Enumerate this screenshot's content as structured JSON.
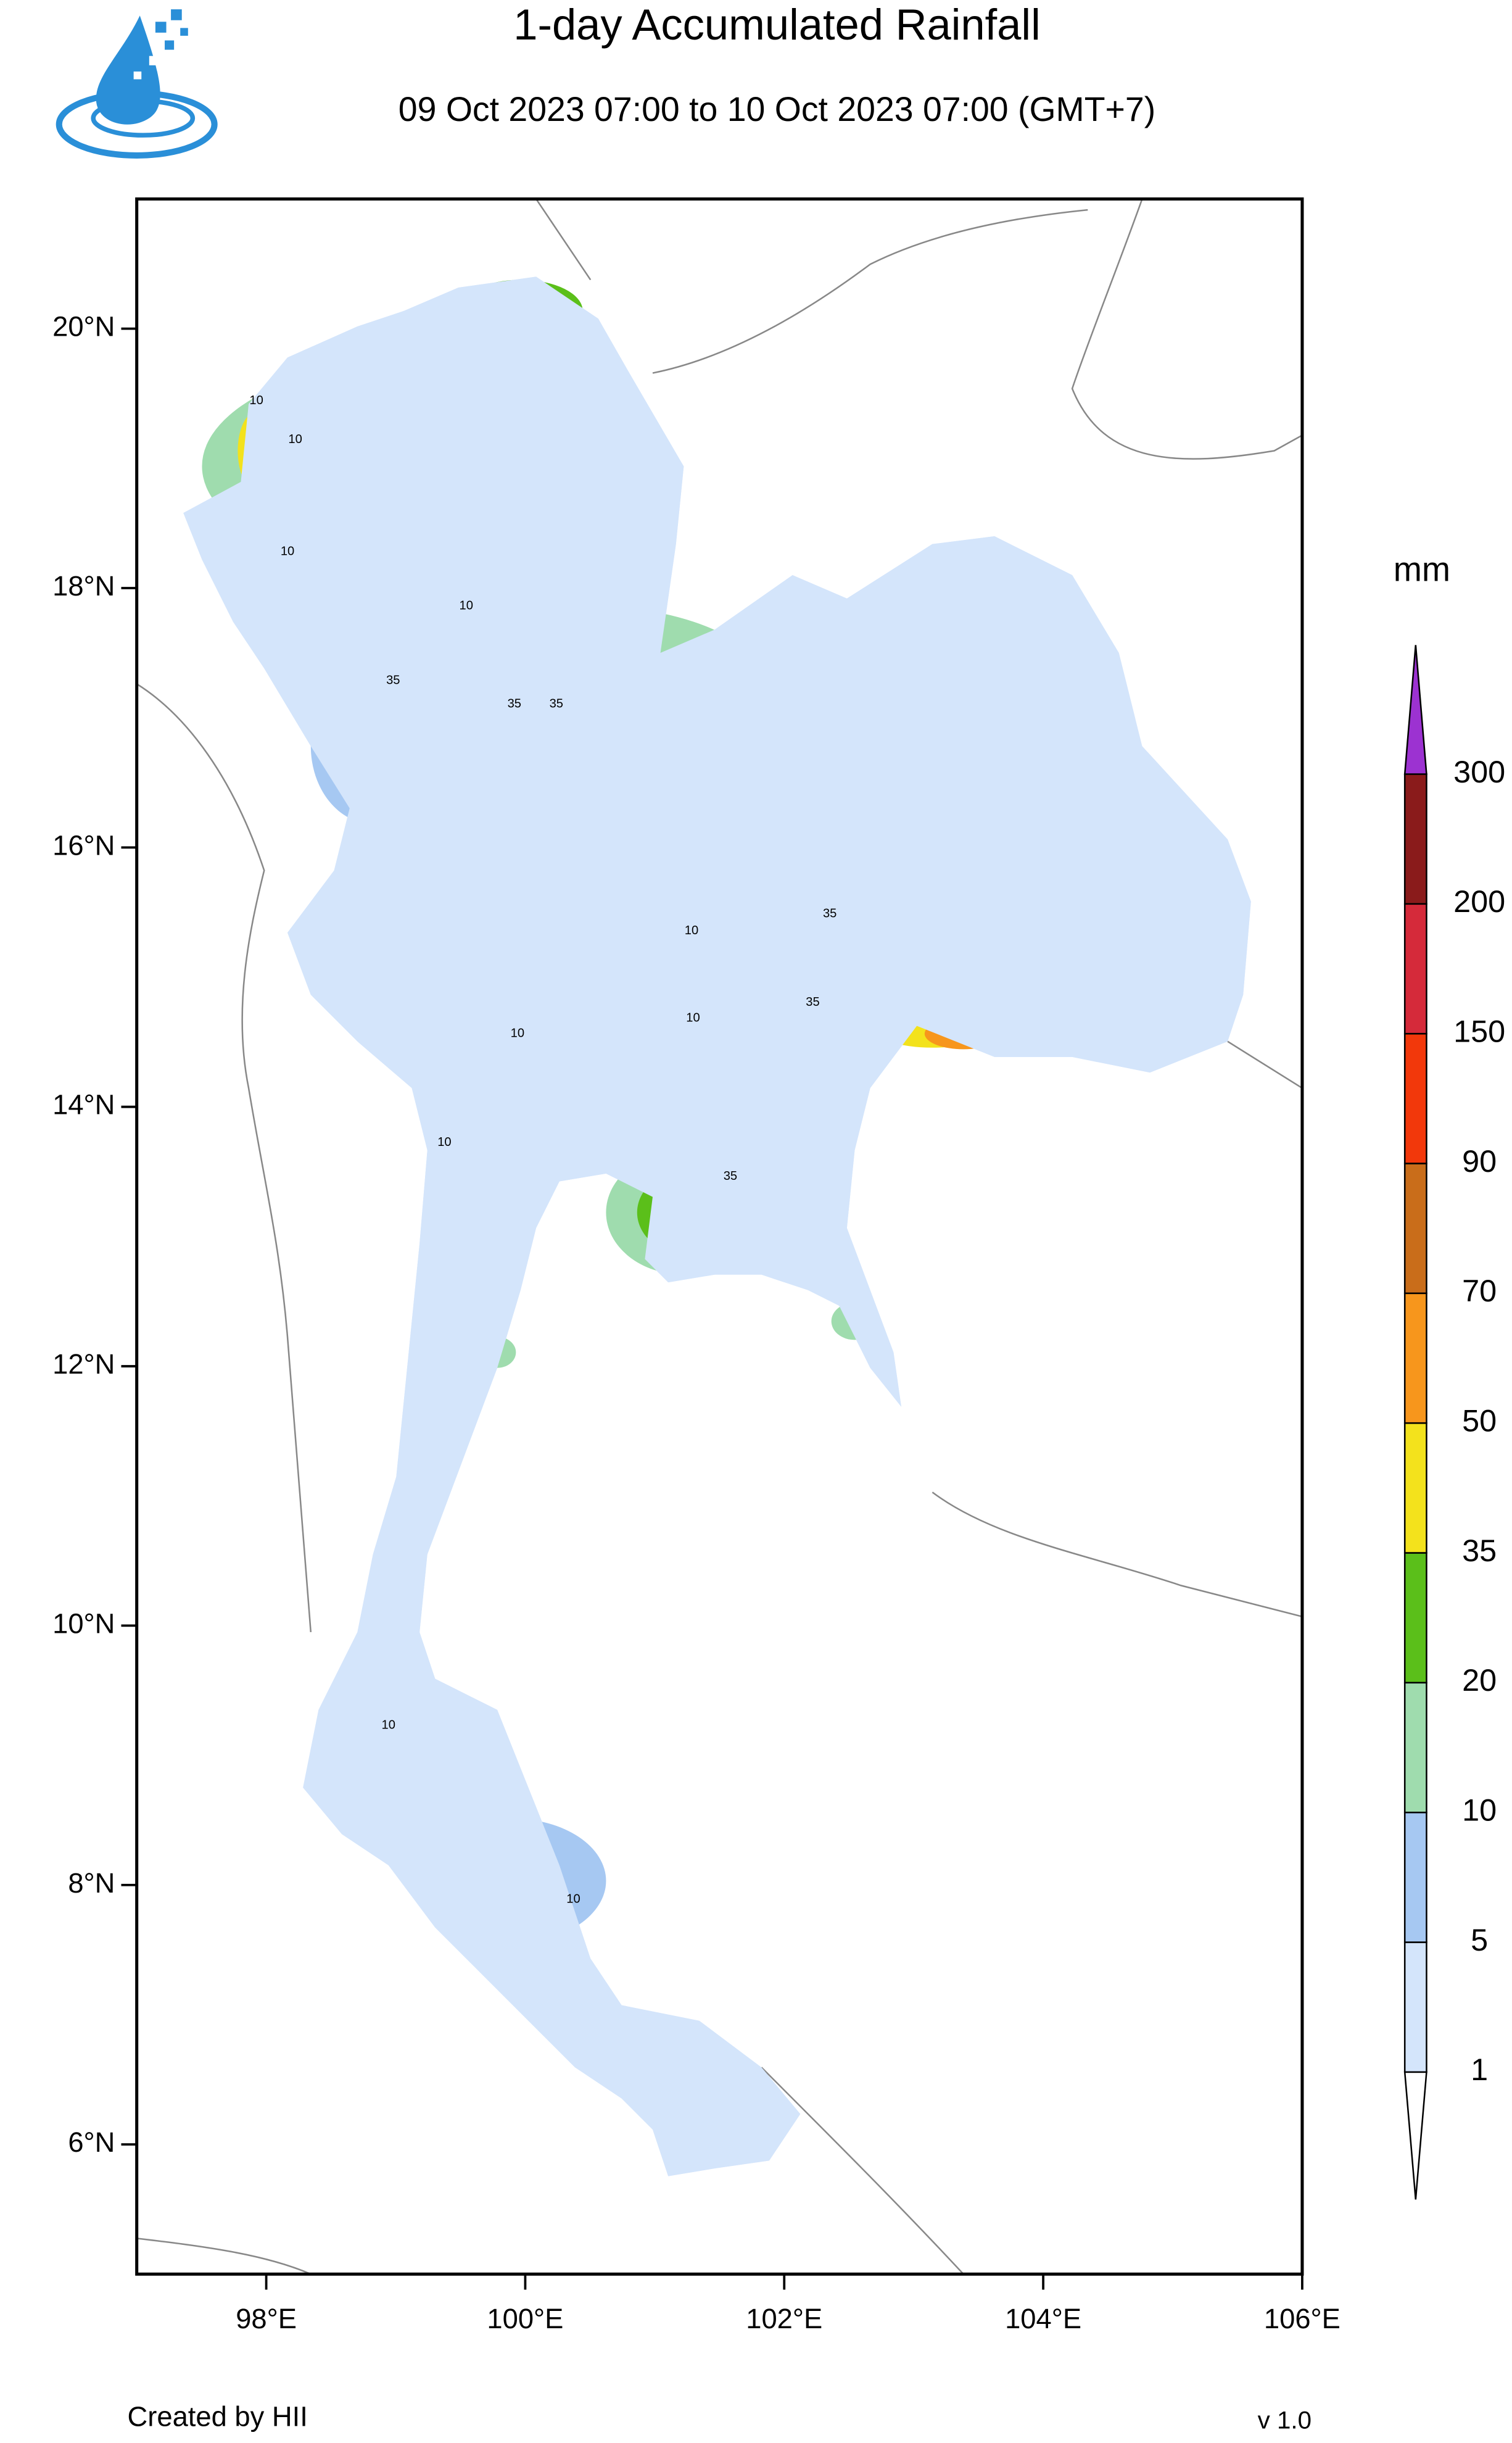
{
  "chart_data": {
    "type": "map",
    "title": "1-day Accumulated Rainfall",
    "subtitle": "09 Oct 2023 07:00 to 10 Oct 2023 07:00 (GMT+7)",
    "xlim": [
      97,
      106
    ],
    "ylim": [
      5,
      21
    ],
    "xticks": [
      {
        "value": 98,
        "label": "98°E"
      },
      {
        "value": 100,
        "label": "100°E"
      },
      {
        "value": 102,
        "label": "102°E"
      },
      {
        "value": 104,
        "label": "104°E"
      },
      {
        "value": 106,
        "label": "106°E"
      }
    ],
    "yticks": [
      {
        "value": 6,
        "label": "6°N"
      },
      {
        "value": 8,
        "label": "8°N"
      },
      {
        "value": 10,
        "label": "10°N"
      },
      {
        "value": 12,
        "label": "12°N"
      },
      {
        "value": 14,
        "label": "14°N"
      },
      {
        "value": 16,
        "label": "16°N"
      },
      {
        "value": 18,
        "label": "18°N"
      },
      {
        "value": 20,
        "label": "20°N"
      }
    ],
    "colorbar": {
      "unit": "mm",
      "levels": [
        1,
        5,
        10,
        20,
        35,
        50,
        70,
        90,
        150,
        200,
        300
      ],
      "colors": [
        "#ffffff",
        "#d4e5fb",
        "#a6c8f2",
        "#9fdcae",
        "#5bbf1a",
        "#f3e21c",
        "#f7961c",
        "#c96d1a",
        "#f2380b",
        "#d52a3a",
        "#8a1b1b",
        "#9c32d1"
      ]
    },
    "contour_labels": [
      10,
      10,
      35,
      10,
      35,
      10,
      35,
      35,
      10,
      35,
      10,
      10,
      10,
      10,
      35,
      10
    ],
    "footer_left": "Created by HII",
    "footer_right": "v 1.0"
  }
}
